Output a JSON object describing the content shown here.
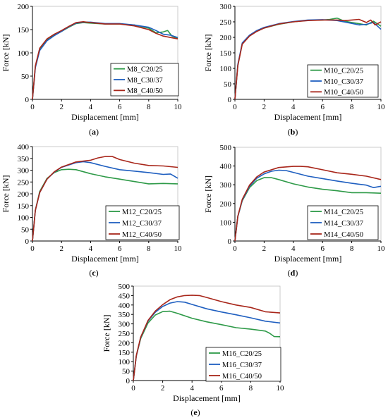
{
  "colors": {
    "series1": "#2e9a48",
    "series2": "#1f5fc0",
    "series3": "#a8261a"
  },
  "chart_data": [
    {
      "type": "line",
      "caption": "a",
      "xlabel": "Displacement [mm]",
      "ylabel": "Force [kN]",
      "xlim": [
        0,
        10
      ],
      "ylim": [
        0,
        200
      ],
      "xticks": [
        0,
        2,
        4,
        6,
        8,
        10
      ],
      "yticks": [
        0,
        50,
        100,
        150,
        200
      ],
      "legend_position": "bottom-right",
      "series": [
        {
          "name": "M8_C20/25",
          "x": [
            0,
            0.2,
            0.5,
            1,
            1.5,
            2,
            2.5,
            3,
            3.5,
            4,
            5,
            6,
            7,
            8,
            8.5,
            9,
            9.3,
            9.6,
            10
          ],
          "y": [
            0,
            70,
            108,
            128,
            138,
            146,
            155,
            163,
            165,
            164,
            162,
            162,
            160,
            153,
            143,
            145,
            148,
            136,
            131
          ]
        },
        {
          "name": "M8_C30/37",
          "x": [
            0,
            0.2,
            0.5,
            1,
            1.5,
            2,
            2.5,
            3,
            3.5,
            4,
            5,
            6,
            7,
            8,
            8.5,
            9,
            9.5,
            10
          ],
          "y": [
            0,
            68,
            105,
            126,
            137,
            146,
            156,
            164,
            166,
            166,
            163,
            163,
            160,
            155,
            148,
            140,
            138,
            133
          ]
        },
        {
          "name": "M8_C40/50",
          "x": [
            0,
            0.2,
            0.5,
            1,
            1.5,
            2,
            2.5,
            3,
            3.5,
            4,
            5,
            6,
            7,
            8,
            8.5,
            9,
            9.5,
            10
          ],
          "y": [
            0,
            72,
            110,
            130,
            140,
            148,
            157,
            165,
            167,
            165,
            162,
            162,
            158,
            150,
            142,
            136,
            133,
            130
          ]
        }
      ]
    },
    {
      "type": "line",
      "caption": "b",
      "xlabel": "Displacement [mm]",
      "ylabel": "Force [kN]",
      "xlim": [
        0,
        10
      ],
      "ylim": [
        0,
        300
      ],
      "xticks": [
        0,
        2,
        4,
        6,
        8,
        10
      ],
      "yticks": [
        0,
        50,
        100,
        150,
        200,
        250,
        300
      ],
      "legend_position": "bottom-right",
      "series": [
        {
          "name": "M10_C20/25",
          "x": [
            0,
            0.2,
            0.5,
            1,
            1.5,
            2,
            3,
            4,
            5,
            6,
            6.5,
            7,
            7.5,
            8,
            8.5,
            9,
            9.5,
            10
          ],
          "y": [
            0,
            110,
            180,
            205,
            220,
            230,
            242,
            250,
            255,
            256,
            258,
            262,
            252,
            248,
            244,
            240,
            252,
            236
          ]
        },
        {
          "name": "M10_C30/37",
          "x": [
            0,
            0.2,
            0.5,
            1,
            1.5,
            2,
            3,
            4,
            5,
            6,
            7,
            8,
            8.5,
            9,
            9.5,
            10
          ],
          "y": [
            0,
            112,
            182,
            207,
            222,
            232,
            244,
            251,
            256,
            257,
            254,
            245,
            240,
            242,
            248,
            226
          ]
        },
        {
          "name": "M10_C40/50",
          "x": [
            0,
            0.2,
            0.5,
            1,
            1.5,
            2,
            3,
            4,
            5,
            6,
            7,
            7.5,
            8,
            8.5,
            9,
            9.3,
            9.6,
            10
          ],
          "y": [
            0,
            108,
            178,
            204,
            219,
            230,
            243,
            250,
            254,
            256,
            256,
            254,
            256,
            258,
            248,
            256,
            240,
            250
          ]
        }
      ]
    },
    {
      "type": "line",
      "caption": "c",
      "xlabel": "Displacement [mm]",
      "ylabel": "Force [kN]",
      "xlim": [
        0,
        10
      ],
      "ylim": [
        0,
        400
      ],
      "xticks": [
        0,
        2,
        4,
        6,
        8,
        10
      ],
      "yticks": [
        0,
        50,
        100,
        150,
        200,
        250,
        300,
        350,
        400
      ],
      "legend_position": "bottom-right",
      "series": [
        {
          "name": "M12_C20/25",
          "x": [
            0,
            0.2,
            0.5,
            1,
            1.5,
            2,
            2.5,
            3,
            4,
            5,
            6,
            7,
            8,
            9,
            10
          ],
          "y": [
            0,
            130,
            210,
            265,
            290,
            302,
            304,
            302,
            285,
            272,
            262,
            252,
            242,
            244,
            242
          ]
        },
        {
          "name": "M12_C30/37",
          "x": [
            0,
            0.2,
            0.5,
            1,
            1.5,
            2,
            3,
            3.5,
            4,
            5,
            6,
            7,
            8,
            9,
            9.5,
            10
          ],
          "y": [
            0,
            130,
            205,
            262,
            292,
            312,
            332,
            336,
            332,
            316,
            302,
            296,
            290,
            282,
            284,
            266
          ]
        },
        {
          "name": "M12_C40/50",
          "x": [
            0,
            0.2,
            0.5,
            1,
            1.5,
            2,
            3,
            4,
            4.5,
            5,
            5.5,
            6,
            7,
            8,
            9,
            10
          ],
          "y": [
            0,
            130,
            205,
            262,
            293,
            313,
            335,
            342,
            352,
            358,
            358,
            345,
            330,
            320,
            318,
            312
          ]
        }
      ]
    },
    {
      "type": "line",
      "caption": "d",
      "xlabel": "Displacement [mm]",
      "ylabel": "Force [kN]",
      "xlim": [
        0,
        10
      ],
      "ylim": [
        0,
        500
      ],
      "xticks": [
        0,
        2,
        4,
        6,
        8,
        10
      ],
      "yticks": [
        0,
        100,
        200,
        300,
        400,
        500
      ],
      "legend_position": "bottom-right",
      "series": [
        {
          "name": "M14_C20/25",
          "x": [
            0,
            0.2,
            0.5,
            1,
            1.5,
            2,
            2.5,
            3,
            4,
            5,
            6,
            7,
            8,
            9,
            10
          ],
          "y": [
            0,
            130,
            215,
            285,
            322,
            338,
            338,
            328,
            305,
            288,
            276,
            268,
            258,
            258,
            255
          ]
        },
        {
          "name": "M14_C30/37",
          "x": [
            0,
            0.2,
            0.5,
            1,
            1.5,
            2,
            2.5,
            3,
            3.5,
            4,
            5,
            6,
            7,
            8,
            9,
            9.5,
            10
          ],
          "y": [
            0,
            130,
            218,
            292,
            335,
            358,
            372,
            378,
            376,
            366,
            346,
            333,
            320,
            308,
            298,
            285,
            292
          ]
        },
        {
          "name": "M14_C40/50",
          "x": [
            0,
            0.2,
            0.5,
            1,
            1.5,
            2,
            3,
            4,
            4.5,
            5,
            6,
            7,
            8,
            9,
            10
          ],
          "y": [
            0,
            132,
            222,
            298,
            342,
            368,
            392,
            398,
            398,
            396,
            380,
            364,
            356,
            346,
            328
          ]
        }
      ]
    },
    {
      "type": "line",
      "caption": "e",
      "xlabel": "Displacement [mm]",
      "ylabel": "Force [kN]",
      "xlim": [
        0,
        10
      ],
      "ylim": [
        0,
        500
      ],
      "xticks": [
        0,
        2,
        4,
        6,
        8,
        10
      ],
      "yticks": [
        0,
        50,
        100,
        150,
        200,
        250,
        300,
        350,
        400,
        450,
        500
      ],
      "legend_position": "bottom-right",
      "series": [
        {
          "name": "M16_C20/25",
          "x": [
            0,
            0.2,
            0.5,
            1,
            1.5,
            2,
            2.5,
            3,
            4,
            5,
            6,
            7,
            8,
            9,
            9.3,
            9.6,
            10
          ],
          "y": [
            0,
            130,
            222,
            305,
            347,
            365,
            367,
            356,
            330,
            311,
            296,
            280,
            272,
            262,
            250,
            233,
            232
          ]
        },
        {
          "name": "M16_C30/37",
          "x": [
            0,
            0.2,
            0.5,
            1,
            1.5,
            2,
            2.5,
            3,
            3.5,
            4,
            5,
            6,
            7,
            8,
            9,
            10
          ],
          "y": [
            0,
            130,
            228,
            315,
            362,
            392,
            410,
            418,
            415,
            403,
            380,
            363,
            348,
            332,
            314,
            305
          ]
        },
        {
          "name": "M16_C40/50",
          "x": [
            0,
            0.2,
            0.5,
            1,
            1.5,
            2,
            2.5,
            3,
            3.5,
            4,
            4.5,
            5,
            6,
            7,
            8,
            9,
            10
          ],
          "y": [
            0,
            132,
            230,
            318,
            368,
            402,
            428,
            443,
            450,
            452,
            450,
            440,
            418,
            400,
            387,
            364,
            358
          ]
        }
      ]
    }
  ]
}
